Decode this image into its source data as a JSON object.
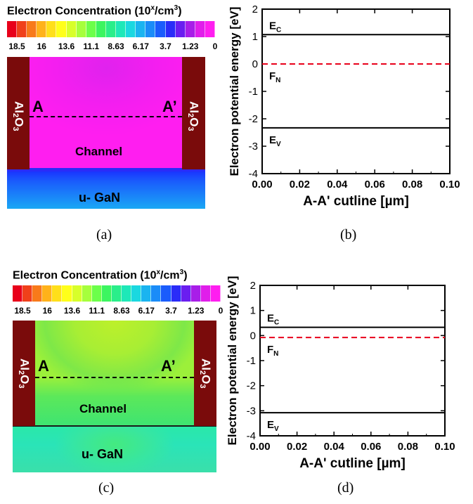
{
  "colorbar": {
    "title_prefix": "Electron Concentration (10",
    "title_sup": "x",
    "title_unit": "/cm",
    "title_sup2": "3",
    "title_suffix": ")",
    "ticks": [
      "18.5",
      "16",
      "13.6",
      "11.1",
      "8.63",
      "6.17",
      "3.7",
      "1.23",
      "0"
    ],
    "colors": [
      "#e8001a",
      "#f0401a",
      "#f87a1a",
      "#ffb21a",
      "#ffdf1a",
      "#ffff1a",
      "#d8ff2a",
      "#a6ff3c",
      "#6cff4a",
      "#3cf560",
      "#2aee8a",
      "#1ee8b8",
      "#1ad8e0",
      "#1ab4f0",
      "#1a8cf8",
      "#1a5cfc",
      "#2a2cf8",
      "#6a1ef0",
      "#a81ee8",
      "#e01eea",
      "#ff1ef0"
    ]
  },
  "panels": [
    {
      "caption": "(a)",
      "oxide_label": {
        "main1": "Al",
        "sub1": "2",
        "main2": "O",
        "sub2": "3"
      },
      "point_a": "A",
      "point_a_prime": "A’",
      "channel_label": "Channel",
      "gan_label": "u- GaN"
    },
    {
      "caption": "(c)",
      "oxide_label": {
        "main1": "Al",
        "sub1": "2",
        "main2": "O",
        "sub2": "3"
      },
      "point_a": "A",
      "point_a_prime": "A’",
      "channel_label": "Channel",
      "gan_label": "u- GaN"
    }
  ],
  "chart_data": [
    {
      "type": "line",
      "caption": "(b)",
      "xlabel": "A-A' cutline  [µm]",
      "ylabel": "Electron potential energy [eV]",
      "xlim": [
        0.0,
        0.1
      ],
      "ylim": [
        -4,
        2
      ],
      "xticks": [
        "0.00",
        "0.02",
        "0.04",
        "0.06",
        "0.08",
        "0.10"
      ],
      "yticks": [
        "-4",
        "-3",
        "-2",
        "-1",
        "0",
        "1",
        "2"
      ],
      "series": [
        {
          "name": "E_C",
          "label_main": "E",
          "label_sub": "C",
          "style": "solid",
          "color": "#000000",
          "x": [
            0.0,
            0.1
          ],
          "y": [
            1.07,
            1.07
          ]
        },
        {
          "name": "F_N",
          "label_main": "F",
          "label_sub": "N",
          "style": "dashed",
          "color": "#e8001a",
          "x": [
            0.0,
            0.1
          ],
          "y": [
            0.0,
            0.0
          ]
        },
        {
          "name": "E_V",
          "label_main": "E",
          "label_sub": "V",
          "style": "solid",
          "color": "#000000",
          "x": [
            0.0,
            0.1
          ],
          "y": [
            -2.33,
            -2.33
          ]
        }
      ]
    },
    {
      "type": "line",
      "caption": "(d)",
      "xlabel": "A-A' cutline [µm]",
      "ylabel": "Electron potential energy [eV]",
      "xlim": [
        0.0,
        0.1
      ],
      "ylim": [
        -4,
        2
      ],
      "xticks": [
        "0.00",
        "0.02",
        "0.04",
        "0.06",
        "0.08",
        "0.10"
      ],
      "yticks": [
        "-4",
        "-3",
        "-2",
        "-1",
        "0",
        "1",
        "2"
      ],
      "series": [
        {
          "name": "E_C",
          "label_main": "E",
          "label_sub": "C",
          "style": "solid",
          "color": "#000000",
          "x": [
            0.0,
            0.1
          ],
          "y": [
            0.33,
            0.33
          ]
        },
        {
          "name": "F_N",
          "label_main": "F",
          "label_sub": "N",
          "style": "dashed",
          "color": "#e8001a",
          "x": [
            0.0,
            0.1
          ],
          "y": [
            -0.08,
            -0.08
          ]
        },
        {
          "name": "E_V",
          "label_main": "E",
          "label_sub": "V",
          "style": "solid",
          "color": "#000000",
          "x": [
            0.0,
            0.1
          ],
          "y": [
            -3.08,
            -3.08
          ]
        }
      ]
    }
  ]
}
